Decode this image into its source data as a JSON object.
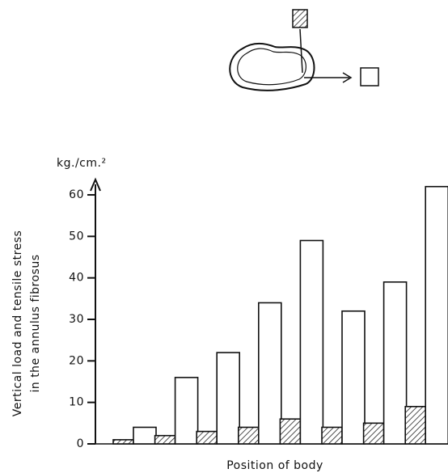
{
  "chart_data": {
    "type": "bar",
    "y_unit": "kg./cm.²",
    "y_label_lines": [
      "Vertical load and tensile stress",
      "in the annulus fibrosus"
    ],
    "x_label": "Position of body",
    "categories": [
      null,
      null,
      null,
      null,
      null,
      null,
      null,
      null
    ],
    "series": [
      {
        "color": "#222222",
        "hatch": true,
        "values": [
          1,
          2,
          3,
          4,
          6,
          4,
          5,
          9
        ]
      },
      {
        "color": "#ffffff",
        "hatch": false,
        "values": [
          4,
          16,
          22,
          34,
          49,
          32,
          39,
          62
        ]
      }
    ],
    "ylim": [
      0,
      64
    ],
    "yticks": [
      0,
      10,
      20,
      30,
      40,
      50,
      60
    ]
  }
}
